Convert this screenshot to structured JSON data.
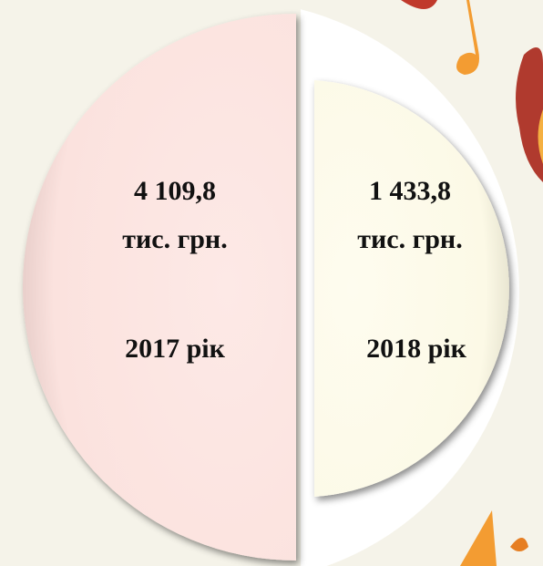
{
  "panels": [
    {
      "value": "4 109,8",
      "unit": "тис. грн.",
      "year": "2017 рік"
    },
    {
      "value": "1 433,8",
      "unit": "тис. грн.",
      "year": "2018 рік"
    }
  ]
}
